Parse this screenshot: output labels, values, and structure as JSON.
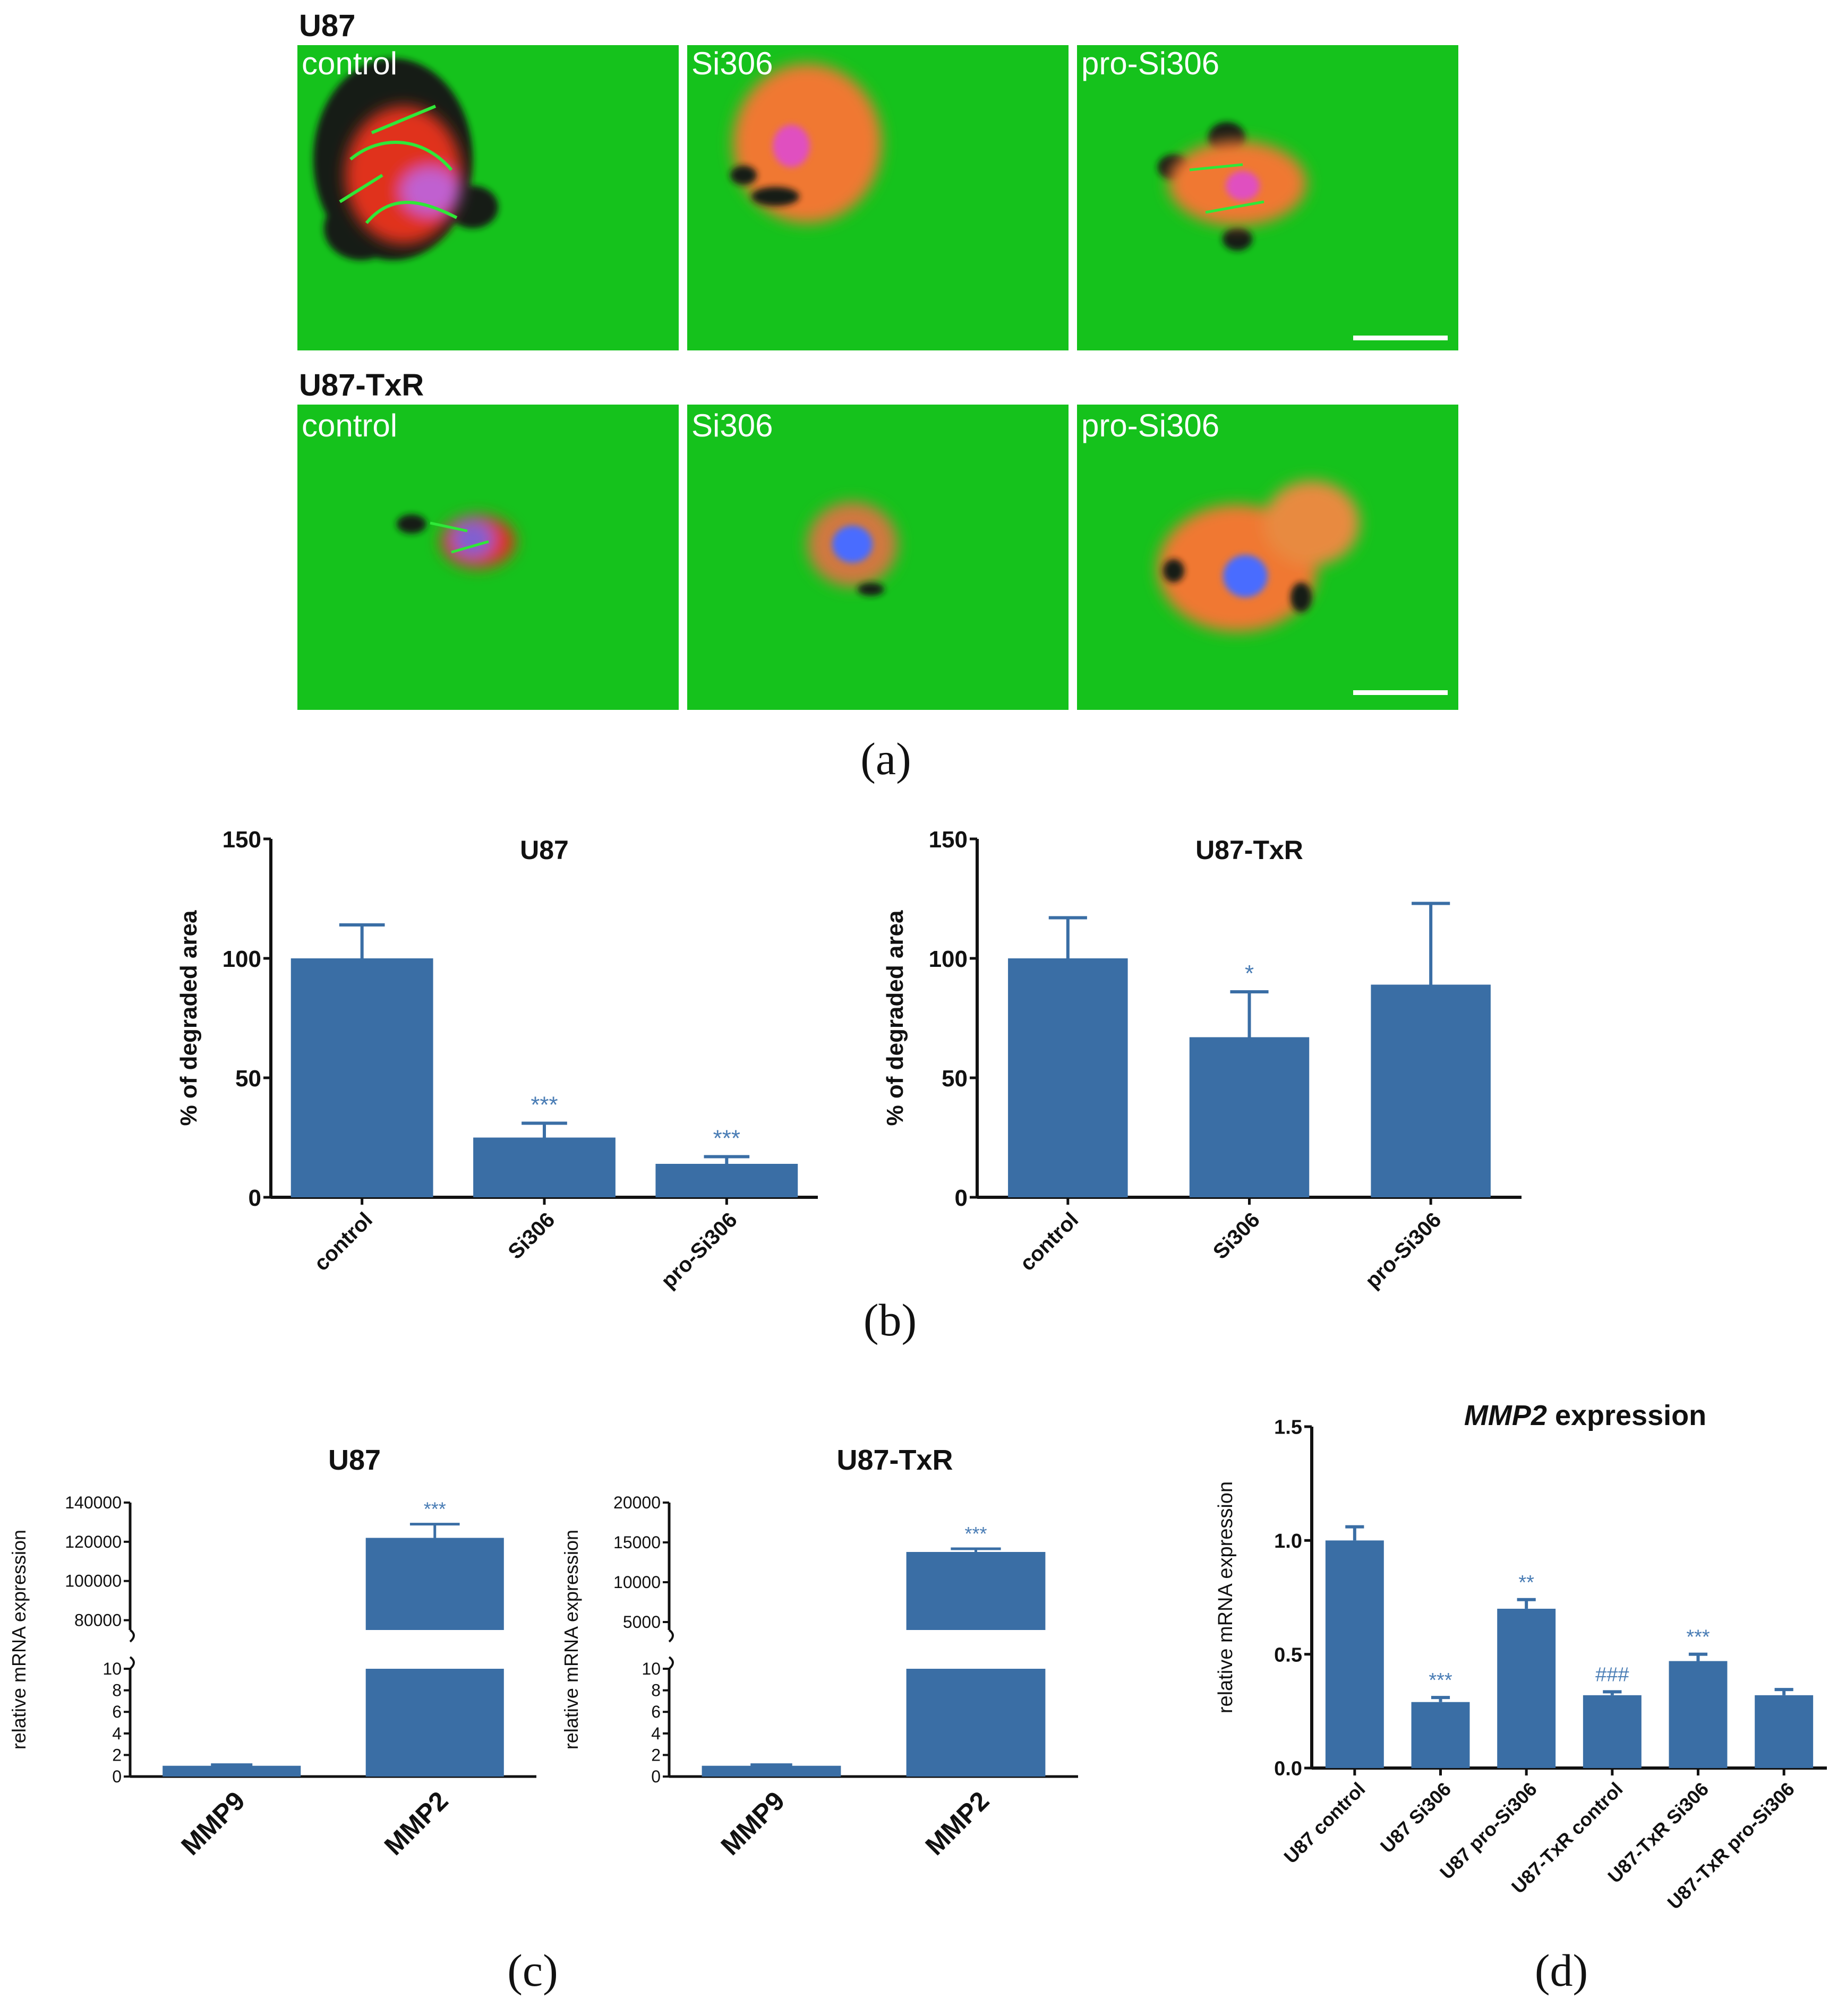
{
  "colors": {
    "bar": "#3a6ea5",
    "star": "#4a7db5",
    "micro_bg": "#15c21c",
    "actin": "#2fe838",
    "red_stain": "#e0331c",
    "orange_stain": "#f07830",
    "nucleus": "#4a6cff",
    "nucleus_pink": "#e050c0",
    "hole": "#111a12"
  },
  "panel_labels": {
    "a": "(a)",
    "b": "(b)",
    "c": "(c)",
    "d": "(d)"
  },
  "micrographs": {
    "rows": [
      {
        "row_label": "U87",
        "tiles": [
          "control",
          "Si306",
          "pro-Si306"
        ]
      },
      {
        "row_label": "U87-TxR",
        "tiles": [
          "control",
          "Si306",
          "pro-Si306"
        ]
      }
    ]
  },
  "chart_data": [
    {
      "id": "b1",
      "type": "bar",
      "title": "U87",
      "ylabel": "% of degraded area",
      "xlabel": "",
      "ylim": [
        0,
        150
      ],
      "yticks": [
        0,
        50,
        100,
        150
      ],
      "categories": [
        "control",
        "Si306",
        "pro-Si306"
      ],
      "values": [
        100,
        25,
        14
      ],
      "errors": [
        14,
        6,
        3
      ],
      "annotations": [
        "",
        "***",
        "***"
      ]
    },
    {
      "id": "b2",
      "type": "bar",
      "title": "U87-TxR",
      "ylabel": "% of degraded area",
      "xlabel": "",
      "ylim": [
        0,
        150
      ],
      "yticks": [
        0,
        50,
        100,
        150
      ],
      "categories": [
        "control",
        "Si306",
        "pro-Si306"
      ],
      "values": [
        100,
        67,
        89
      ],
      "errors": [
        17,
        19,
        34
      ],
      "annotations": [
        "",
        "*",
        ""
      ]
    },
    {
      "id": "c1",
      "type": "bar",
      "title": "U87",
      "ylabel": "relative mRNA expression",
      "xlabel": "",
      "broken_axis": true,
      "lower_ylim": [
        0,
        10
      ],
      "lower_yticks": [
        0,
        2,
        4,
        6,
        8,
        10
      ],
      "upper_ylim": [
        75000,
        140000
      ],
      "upper_yticks": [
        80000,
        100000,
        120000,
        140000
      ],
      "categories": [
        "MMP9",
        "MMP2"
      ],
      "values": [
        1,
        122000
      ],
      "errors": [
        0.1,
        7000
      ],
      "annotations": [
        "",
        "***"
      ]
    },
    {
      "id": "c2",
      "type": "bar",
      "title": "U87-TxR",
      "ylabel": "relative mRNA expression",
      "xlabel": "",
      "broken_axis": true,
      "lower_ylim": [
        0,
        10
      ],
      "lower_yticks": [
        0,
        2,
        4,
        6,
        8,
        10
      ],
      "upper_ylim": [
        4000,
        20000
      ],
      "upper_yticks": [
        5000,
        10000,
        15000,
        20000
      ],
      "categories": [
        "MMP9",
        "MMP2"
      ],
      "values": [
        1,
        13800
      ],
      "errors": [
        0.1,
        400
      ],
      "annotations": [
        "",
        "***"
      ]
    },
    {
      "id": "d",
      "type": "bar",
      "title_italic": "MMP2",
      "title_rest": " expression",
      "ylabel": "relative mRNA expression",
      "xlabel": "",
      "ylim": [
        0,
        1.5
      ],
      "yticks": [
        "0.0",
        "0.5",
        "1.0",
        "1.5"
      ],
      "categories": [
        "U87 control",
        "U87 Si306",
        "U87 pro-Si306",
        "U87-TxR control",
        "U87-TxR Si306",
        "U87-TxR pro-Si306"
      ],
      "values": [
        1.0,
        0.29,
        0.7,
        0.32,
        0.47,
        0.32
      ],
      "errors": [
        0.06,
        0.02,
        0.04,
        0.015,
        0.03,
        0.025
      ],
      "annotations": [
        "",
        "***",
        "**",
        "###",
        "***",
        ""
      ]
    }
  ]
}
